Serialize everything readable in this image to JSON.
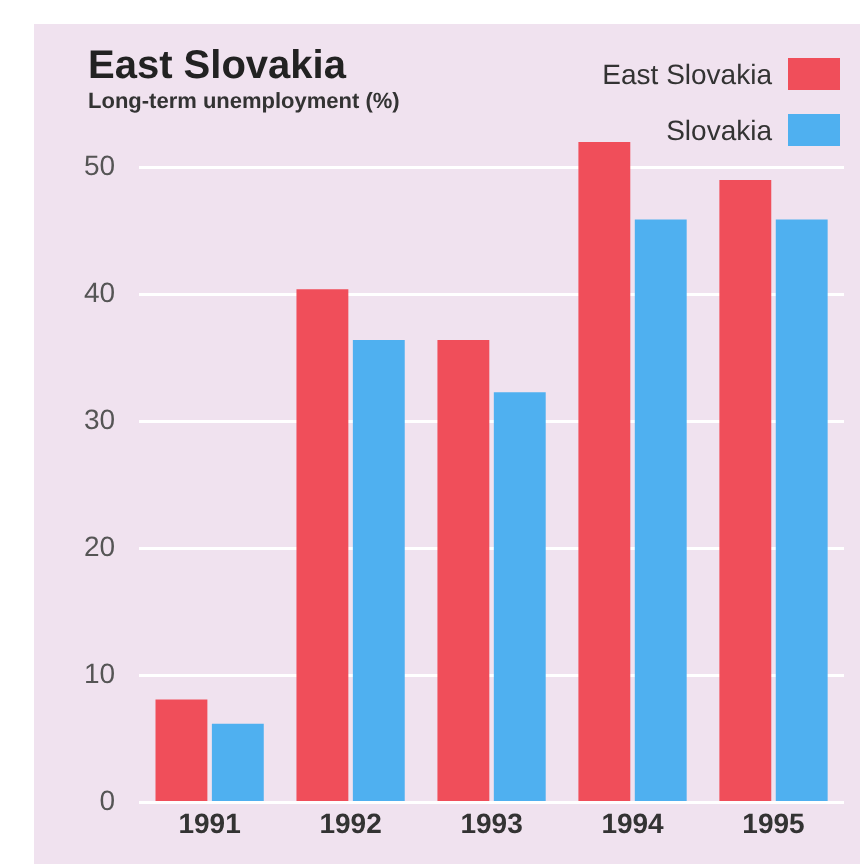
{
  "chart_data": {
    "type": "bar",
    "title": "East Slovakia",
    "subtitle": "Long-term unemployment (%)",
    "categories": [
      "1991",
      "1992",
      "1993",
      "1994",
      "1995"
    ],
    "series": [
      {
        "name": "East Slovakia",
        "color": "#f04e5a",
        "values": [
          8.1,
          40.4,
          36.4,
          52.0,
          49.0
        ]
      },
      {
        "name": "Slovakia",
        "color": "#4fb0f0",
        "values": [
          6.2,
          36.4,
          32.3,
          45.9,
          45.9
        ]
      }
    ],
    "ylim": [
      0,
      52.0
    ],
    "yticks": [
      0,
      10,
      20,
      30,
      40,
      50
    ],
    "grid": "y",
    "legend": "top right"
  }
}
